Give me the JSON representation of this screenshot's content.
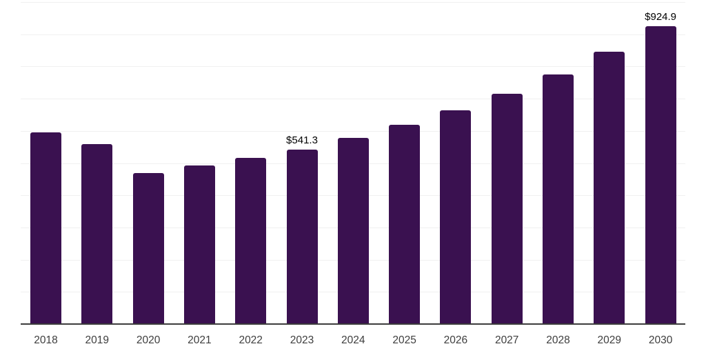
{
  "chart_data": {
    "type": "bar",
    "title": "",
    "xlabel": "",
    "ylabel": "",
    "categories": [
      "2018",
      "2019",
      "2020",
      "2021",
      "2022",
      "2023",
      "2024",
      "2025",
      "2026",
      "2027",
      "2028",
      "2029",
      "2030"
    ],
    "values": [
      596.0,
      558.5,
      470.0,
      493.0,
      516.5,
      541.3,
      578.5,
      619.0,
      664.0,
      715.5,
      775.0,
      846.0,
      924.9
    ],
    "data_labels": {
      "2023": "$541.3",
      "2030": "$924.9"
    },
    "ylim": [
      0,
      1000
    ],
    "grid_step": 100,
    "grid": true,
    "legend": false,
    "colors": {
      "bar": "#3a1150",
      "gridline": "#f0f0f0",
      "axis_line": "#3c3c3c",
      "tick_label": "#3d3d3d",
      "data_label": "#000000",
      "background": "#ffffff"
    }
  }
}
